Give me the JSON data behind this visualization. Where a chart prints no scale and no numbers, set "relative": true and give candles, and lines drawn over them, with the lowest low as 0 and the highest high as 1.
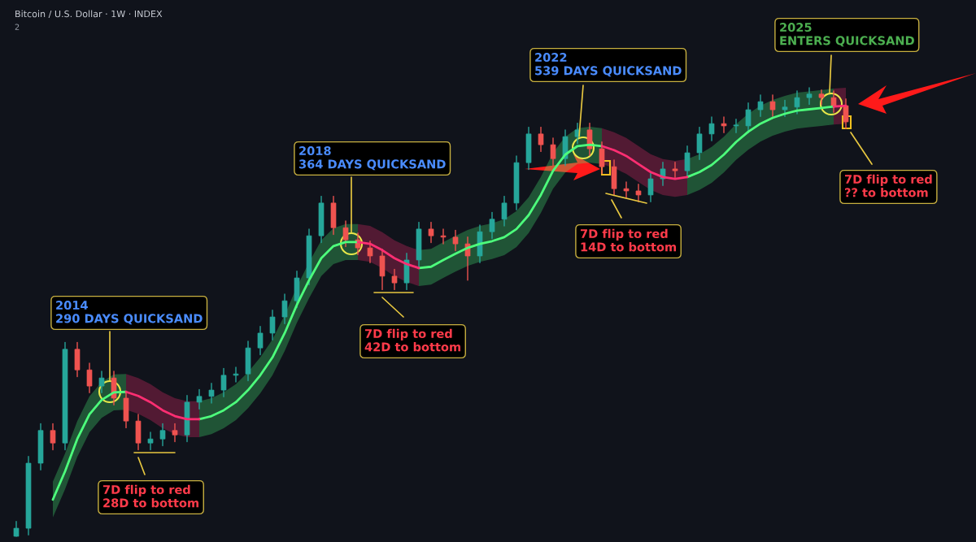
{
  "chart_data": {
    "type": "candlestick",
    "title": "Bitcoin / U.S. Dollar · 1W · INDEX",
    "relative": true,
    "categories": [
      null,
      null,
      null,
      null,
      null,
      null,
      null,
      null,
      null,
      null,
      null,
      null,
      null,
      null,
      null,
      null,
      null,
      null,
      null,
      null,
      null,
      null,
      null,
      null,
      null,
      null,
      null,
      null,
      null,
      null,
      null,
      null,
      null,
      null,
      null,
      null,
      null,
      null,
      null,
      null,
      null,
      null,
      null,
      null,
      null,
      null,
      null,
      null,
      null,
      null,
      null,
      null,
      null,
      null,
      null,
      null,
      null,
      null,
      null,
      null,
      null,
      null,
      null,
      null,
      null,
      null,
      null,
      null,
      null
    ],
    "ohlc": [
      [
        0,
        0.033,
        0,
        0.018
      ],
      [
        0.018,
        0.178,
        0.003,
        0.163
      ],
      [
        0.163,
        0.251,
        0.148,
        0.236
      ],
      [
        0.236,
        0.251,
        0.193,
        0.208
      ],
      [
        0.208,
        0.432,
        0.193,
        0.417
      ],
      [
        0.417,
        0.432,
        0.356,
        0.371
      ],
      [
        0.371,
        0.386,
        0.32,
        0.335
      ],
      [
        0.335,
        0.368,
        0.32,
        0.353
      ],
      [
        0.353,
        0.368,
        0.293,
        0.308
      ],
      [
        0.308,
        0.323,
        0.242,
        0.257
      ],
      [
        0.257,
        0.272,
        0.193,
        0.208
      ],
      [
        0.208,
        0.232,
        0.193,
        0.217
      ],
      [
        0.217,
        0.251,
        0.202,
        0.236
      ],
      [
        0.236,
        0.251,
        0.211,
        0.226
      ],
      [
        0.226,
        0.314,
        0.211,
        0.299
      ],
      [
        0.299,
        0.327,
        0.284,
        0.312
      ],
      [
        0.312,
        0.341,
        0.297,
        0.326
      ],
      [
        0.326,
        0.374,
        0.311,
        0.359
      ],
      [
        0.359,
        0.377,
        0.344,
        0.362
      ],
      [
        0.362,
        0.435,
        0.347,
        0.42
      ],
      [
        0.42,
        0.468,
        0.405,
        0.453
      ],
      [
        0.453,
        0.504,
        0.438,
        0.489
      ],
      [
        0.489,
        0.54,
        0.474,
        0.525
      ],
      [
        0.525,
        0.591,
        0.51,
        0.576
      ],
      [
        0.576,
        0.685,
        0.561,
        0.67
      ],
      [
        0.67,
        0.758,
        0.655,
        0.743
      ],
      [
        0.743,
        0.758,
        0.673,
        0.688
      ],
      [
        0.688,
        0.703,
        0.646,
        0.661
      ],
      [
        0.661,
        0.676,
        0.628,
        0.643
      ],
      [
        0.643,
        0.658,
        0.61,
        0.625
      ],
      [
        0.625,
        0.64,
        0.55,
        0.58
      ],
      [
        0.58,
        0.595,
        0.55,
        0.565
      ],
      [
        0.565,
        0.631,
        0.55,
        0.616
      ],
      [
        0.616,
        0.7,
        0.601,
        0.685
      ],
      [
        0.685,
        0.7,
        0.655,
        0.67
      ],
      [
        0.67,
        0.685,
        0.652,
        0.667
      ],
      [
        0.667,
        0.682,
        0.637,
        0.652
      ],
      [
        0.652,
        0.667,
        0.571,
        0.625
      ],
      [
        0.625,
        0.694,
        0.61,
        0.679
      ],
      [
        0.679,
        0.722,
        0.664,
        0.707
      ],
      [
        0.707,
        0.758,
        0.692,
        0.743
      ],
      [
        0.743,
        0.848,
        0.728,
        0.833
      ],
      [
        0.833,
        0.912,
        0.818,
        0.897
      ],
      [
        0.897,
        0.912,
        0.858,
        0.873
      ],
      [
        0.873,
        0.888,
        0.827,
        0.842
      ],
      [
        0.842,
        0.906,
        0.827,
        0.891
      ],
      [
        0.891,
        0.921,
        0.876,
        0.906
      ],
      [
        0.906,
        0.921,
        0.849,
        0.864
      ],
      [
        0.864,
        0.879,
        0.809,
        0.824
      ],
      [
        0.824,
        0.839,
        0.76,
        0.775
      ],
      [
        0.775,
        0.79,
        0.755,
        0.77
      ],
      [
        0.77,
        0.785,
        0.746,
        0.761
      ],
      [
        0.761,
        0.812,
        0.746,
        0.797
      ],
      [
        0.797,
        0.834,
        0.782,
        0.819
      ],
      [
        0.819,
        0.834,
        0.8,
        0.815
      ],
      [
        0.815,
        0.87,
        0.8,
        0.855
      ],
      [
        0.855,
        0.912,
        0.84,
        0.897
      ],
      [
        0.897,
        0.935,
        0.882,
        0.92
      ],
      [
        0.92,
        0.935,
        0.9,
        0.915
      ],
      [
        0.915,
        0.93,
        0.9,
        0.915
      ],
      [
        0.915,
        0.966,
        0.9,
        0.951
      ],
      [
        0.951,
        0.984,
        0.936,
        0.969
      ],
      [
        0.969,
        0.984,
        0.936,
        0.951
      ],
      [
        0.951,
        0.972,
        0.936,
        0.957
      ],
      [
        0.957,
        0.993,
        0.942,
        0.978
      ],
      [
        0.978,
        1,
        0.963,
        0.986
      ],
      [
        0.986,
        0.995,
        0.963,
        0.978
      ],
      [
        0.978,
        0.993,
        0.945,
        0.96
      ],
      [
        0.96,
        0.975,
        0.909,
        0.924
      ]
    ],
    "series": [
      {
        "type": "line",
        "color": "#4dff7c",
        "values": [
          null,
          null,
          null,
          0.082,
          0.145,
          0.217,
          0.272,
          0.304,
          0.321,
          0.322,
          null,
          null,
          null,
          null,
          null,
          0.261,
          0.268,
          0.281,
          0.299,
          0.326,
          0.359,
          0.399,
          0.453,
          0.516,
          0.571,
          0.62,
          0.647,
          0.656,
          0.656,
          null,
          null,
          null,
          null,
          0.598,
          0.601,
          0.616,
          0.63,
          0.643,
          0.652,
          0.658,
          0.667,
          0.685,
          0.716,
          0.761,
          0.815,
          0.851,
          0.87,
          0.873,
          0.87,
          null,
          null,
          null,
          null,
          null,
          null,
          0.801,
          0.812,
          0.828,
          0.851,
          0.879,
          0.902,
          0.92,
          0.933,
          0.942,
          0.949,
          0.952,
          0.955,
          0.958,
          null
        ],
        "lower": [
          null,
          null,
          null,
          0.042,
          0.105,
          0.177,
          0.232,
          0.264,
          0.281,
          0.282,
          null,
          null,
          null,
          null,
          null,
          0.221,
          0.228,
          0.241,
          0.259,
          0.286,
          0.319,
          0.359,
          0.413,
          0.476,
          0.531,
          0.58,
          0.607,
          0.616,
          0.616,
          null,
          null,
          null,
          null,
          0.558,
          0.561,
          0.576,
          0.59,
          0.603,
          0.612,
          0.618,
          0.627,
          0.645,
          0.676,
          0.721,
          0.775,
          0.811,
          0.83,
          0.833,
          0.83,
          null,
          null,
          null,
          null,
          null,
          null,
          0.761,
          0.772,
          0.788,
          0.811,
          0.839,
          0.862,
          0.88,
          0.893,
          0.902,
          0.909,
          0.912,
          0.915,
          0.918,
          null
        ],
        "upper": [
          null,
          null,
          null,
          0.122,
          0.185,
          0.257,
          0.312,
          0.344,
          0.361,
          0.362,
          null,
          null,
          null,
          null,
          null,
          0.301,
          0.308,
          0.321,
          0.339,
          0.366,
          0.399,
          0.439,
          0.493,
          0.556,
          0.611,
          0.66,
          0.687,
          0.696,
          0.696,
          null,
          null,
          null,
          null,
          0.638,
          0.641,
          0.656,
          0.67,
          0.683,
          0.692,
          0.698,
          0.707,
          0.725,
          0.756,
          0.801,
          0.855,
          0.891,
          0.91,
          0.913,
          0.91,
          null,
          null,
          null,
          null,
          null,
          null,
          0.841,
          0.852,
          0.868,
          0.891,
          0.919,
          0.942,
          0.96,
          0.973,
          0.982,
          0.989,
          0.992,
          0.995,
          0.998,
          null
        ]
      },
      {
        "type": "line",
        "color": "#ff2e72",
        "values": [
          null,
          null,
          null,
          null,
          null,
          null,
          null,
          null,
          null,
          0.322,
          0.313,
          0.299,
          0.281,
          0.268,
          0.261,
          0.261,
          null,
          null,
          null,
          null,
          null,
          null,
          null,
          null,
          null,
          null,
          null,
          null,
          0.656,
          0.652,
          0.638,
          0.62,
          0.607,
          0.598,
          null,
          null,
          null,
          null,
          null,
          null,
          null,
          null,
          null,
          null,
          null,
          null,
          null,
          null,
          0.87,
          0.861,
          0.848,
          0.83,
          0.812,
          0.801,
          0.797,
          0.801,
          null,
          null,
          null,
          null,
          null,
          null,
          null,
          null,
          null,
          null,
          null,
          0.958,
          0.96
        ],
        "lower": [
          null,
          null,
          null,
          null,
          null,
          null,
          null,
          null,
          null,
          0.282,
          0.273,
          0.259,
          0.241,
          0.228,
          0.221,
          0.221,
          null,
          null,
          null,
          null,
          null,
          null,
          null,
          null,
          null,
          null,
          null,
          null,
          0.616,
          0.612,
          0.598,
          0.58,
          0.567,
          0.558,
          null,
          null,
          null,
          null,
          null,
          null,
          null,
          null,
          null,
          null,
          null,
          null,
          null,
          null,
          0.83,
          0.821,
          0.808,
          0.79,
          0.772,
          0.761,
          0.757,
          0.761,
          null,
          null,
          null,
          null,
          null,
          null,
          null,
          null,
          null,
          null,
          null,
          0.918,
          0.92
        ],
        "upper": [
          null,
          null,
          null,
          null,
          null,
          null,
          null,
          null,
          null,
          0.362,
          0.353,
          0.339,
          0.321,
          0.308,
          0.301,
          0.301,
          null,
          null,
          null,
          null,
          null,
          null,
          null,
          null,
          null,
          null,
          null,
          null,
          0.696,
          0.692,
          0.678,
          0.66,
          0.647,
          0.638,
          null,
          null,
          null,
          null,
          null,
          null,
          null,
          null,
          null,
          null,
          null,
          null,
          null,
          null,
          0.91,
          0.901,
          0.888,
          0.87,
          0.852,
          0.841,
          0.837,
          0.841,
          null,
          null,
          null,
          null,
          null,
          null,
          null,
          null,
          null,
          null,
          null,
          0.998,
          1
        ]
      }
    ],
    "annotations": [
      "2014\n290 DAYS QUICKSAND",
      "7D flip to red\n28D to bottom",
      "2018\n364 DAYS QUICKSAND",
      "7D flip to red\n42D to bottom",
      "2022\n539 DAYS QUICKSAND",
      "7D flip to red\n14D to bottom",
      "2025\nENTERS QUICKSAND",
      "7D flip to red\n?? to bottom",
      "2"
    ]
  }
}
